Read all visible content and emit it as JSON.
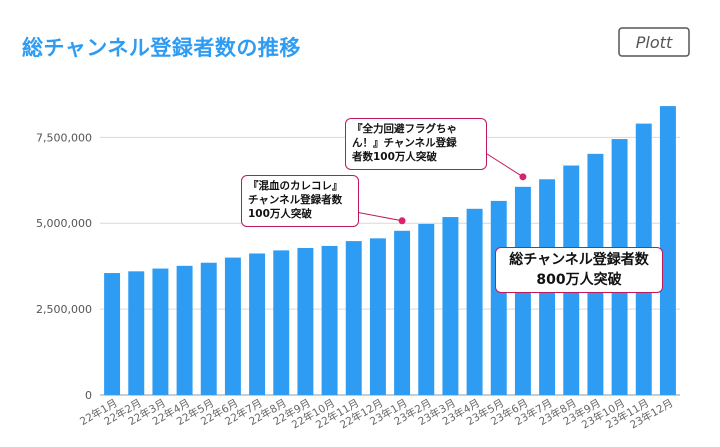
{
  "page": {
    "title": "総チャンネル登録者数の推移",
    "logo_text": "Plott"
  },
  "colors": {
    "title": "#2f9cf3",
    "bar": "#2f9cf3",
    "annotation_border": "#c0185c",
    "annotation_dot": "#d6246e",
    "axis_text": "#555555",
    "grid": "#d9d9d9"
  },
  "annotations": [
    {
      "text": "『混血のカレコレ』\nチャンネル登録者数\n100万人突破",
      "category": "23年1月"
    },
    {
      "text": "『全力回避フラグちゃ\nん！』チャンネル登録\n者数100万人突破",
      "category": "23年6月"
    }
  ],
  "milestone": {
    "line1": "総チャンネル登録者数",
    "line2": "800万人突破"
  },
  "chart_data": {
    "type": "bar",
    "categories": [
      "22年1月",
      "22年2月",
      "22年3月",
      "22年4月",
      "22年5月",
      "22年6月",
      "22年7月",
      "22年8月",
      "22年9月",
      "22年10月",
      "22年11月",
      "22年12月",
      "23年1月",
      "23年2月",
      "23年3月",
      "23年4月",
      "23年5月",
      "23年6月",
      "23年7月",
      "23年8月",
      "23年9月",
      "23年10月",
      "23年11月",
      "23年12月"
    ],
    "values": [
      3550000,
      3600000,
      3680000,
      3760000,
      3850000,
      4000000,
      4120000,
      4210000,
      4280000,
      4340000,
      4480000,
      4560000,
      4780000,
      4980000,
      5180000,
      5420000,
      5650000,
      6060000,
      6280000,
      6680000,
      7020000,
      7450000,
      7900000,
      8410000
    ],
    "y_ticks": [
      "0",
      "2,500,000",
      "5,000,000",
      "7,500,000"
    ],
    "y_tick_values": [
      0,
      2500000,
      5000000,
      7500000
    ],
    "ylim": [
      0,
      8500000
    ],
    "grid": true,
    "legend": "none"
  }
}
